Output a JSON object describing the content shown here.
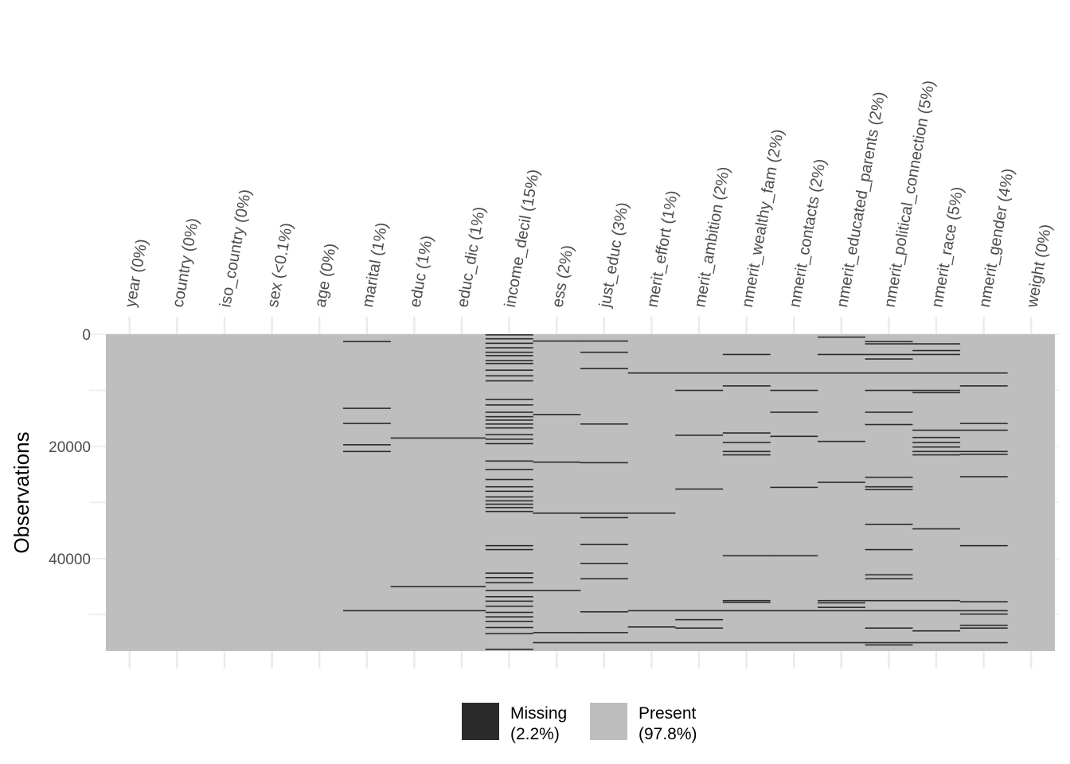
{
  "chart_data": {
    "type": "heatmap",
    "title": "",
    "xlabel": "",
    "ylabel": "Observations",
    "n_observations": 56500,
    "y_ticks": [
      0,
      20000,
      40000
    ],
    "y_tick_labels": [
      "0",
      "20000",
      "40000"
    ],
    "grid": true,
    "legend_position": "bottom",
    "colors": {
      "missing": "#2b2b2b",
      "present": "#bebebe",
      "grid": "#ebebeb"
    },
    "legend": [
      {
        "key": "missing",
        "label": "Missing",
        "pct": "(2.2%)"
      },
      {
        "key": "present",
        "label": "Present",
        "pct": "(97.8%)"
      }
    ],
    "columns": [
      {
        "label": "year (0%)",
        "missing_rows": []
      },
      {
        "label": "country (0%)",
        "missing_rows": []
      },
      {
        "label": "iso_country (0%)",
        "missing_rows": []
      },
      {
        "label": "sex (<0.1%)",
        "missing_rows": []
      },
      {
        "label": "age (0%)",
        "missing_rows": []
      },
      {
        "label": "marital (1%)",
        "missing_rows": [
          1200,
          13100,
          15800,
          19600,
          20800,
          49200
        ]
      },
      {
        "label": "educ (1%)",
        "missing_rows": [
          18400,
          44900,
          49200
        ]
      },
      {
        "label": "educ_dic (1%)",
        "missing_rows": [
          18400,
          44900,
          49200
        ]
      },
      {
        "label": "income_decil (15%)",
        "missing_rows": [
          0,
          700,
          1500,
          2300,
          3100,
          3700,
          4600,
          5100,
          6300,
          7300,
          8200,
          11500,
          12500,
          13800,
          14600,
          15200,
          15900,
          16600,
          17800,
          18600,
          19400,
          22500,
          24000,
          25800,
          27100,
          27900,
          28900,
          29600,
          30200,
          30800,
          31500,
          37600,
          38300,
          42500,
          43300,
          44200,
          45600,
          46700,
          47500,
          48400,
          49500,
          50300,
          51100,
          52200,
          53300,
          56100
        ]
      },
      {
        "label": "ess (2%)",
        "missing_rows": [
          1100,
          14200,
          22700,
          31800,
          45600,
          53100,
          54900
        ]
      },
      {
        "label": "just_educ (3%)",
        "missing_rows": [
          1100,
          3100,
          6000,
          15900,
          22800,
          31800,
          32600,
          37400,
          40800,
          43500,
          49400,
          53100,
          54900
        ]
      },
      {
        "label": "merit_effort (1%)",
        "missing_rows": [
          6800,
          31800,
          49200,
          52100,
          54900
        ]
      },
      {
        "label": "merit_ambition (2%)",
        "missing_rows": [
          6800,
          9900,
          17900,
          27500,
          49200,
          50800,
          52300,
          54900
        ]
      },
      {
        "label": "nmerit_wealthy_fam (2%)",
        "missing_rows": [
          3500,
          6800,
          9100,
          17500,
          19200,
          20800,
          21400,
          39400,
          47400,
          47700,
          49200,
          54900
        ]
      },
      {
        "label": "nmerit_contacts (2%)",
        "missing_rows": [
          6800,
          9900,
          13800,
          18100,
          27200,
          39400,
          49200,
          54900
        ]
      },
      {
        "label": "nmerit_educated_parents (2%)",
        "missing_rows": [
          400,
          3500,
          6800,
          19000,
          26300,
          47400,
          47800,
          48600,
          49200,
          54900
        ]
      },
      {
        "label": "nmerit_political_connection (5%)",
        "missing_rows": [
          1200,
          1600,
          3500,
          4300,
          6800,
          9900,
          13800,
          16000,
          25400,
          27100,
          27600,
          33800,
          38300,
          42800,
          43500,
          47400,
          49200,
          52300,
          54900,
          55300
        ]
      },
      {
        "label": "nmerit_race (5%)",
        "missing_rows": [
          1600,
          2800,
          3500,
          6800,
          9900,
          10300,
          17000,
          18300,
          19200,
          20000,
          20800,
          21400,
          34600,
          47400,
          49200,
          52800,
          54900
        ]
      },
      {
        "label": "nmerit_gender (4%)",
        "missing_rows": [
          6800,
          9100,
          15800,
          17000,
          20800,
          21300,
          25300,
          37600,
          47600,
          49200,
          49800,
          51800,
          52300,
          54900
        ]
      },
      {
        "label": "weight (0%)",
        "missing_rows": []
      }
    ]
  }
}
